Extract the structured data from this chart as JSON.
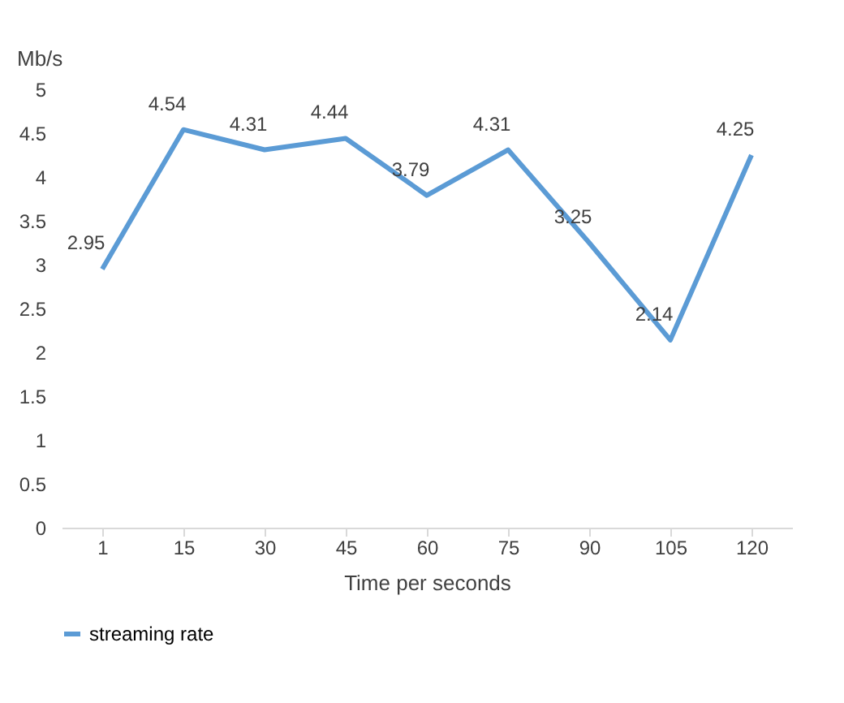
{
  "chart_data": {
    "type": "line",
    "xlabel": "Time per seconds",
    "ylabel": "Mb/s",
    "categories": [
      "1",
      "15",
      "30",
      "45",
      "60",
      "75",
      "90",
      "105",
      "120"
    ],
    "series": [
      {
        "name": "streaming rate",
        "color": "#5b9bd5",
        "values": [
          2.95,
          4.54,
          4.31,
          4.44,
          3.79,
          4.31,
          3.25,
          2.14,
          4.25
        ]
      }
    ],
    "ylim": [
      0,
      5
    ],
    "yticks": [
      0,
      0.5,
      1,
      1.5,
      2,
      2.5,
      3,
      3.5,
      4,
      4.5,
      5
    ],
    "data_labels": true,
    "grid": false,
    "legend": "bottom",
    "marker": "none",
    "line_style": "solid"
  }
}
